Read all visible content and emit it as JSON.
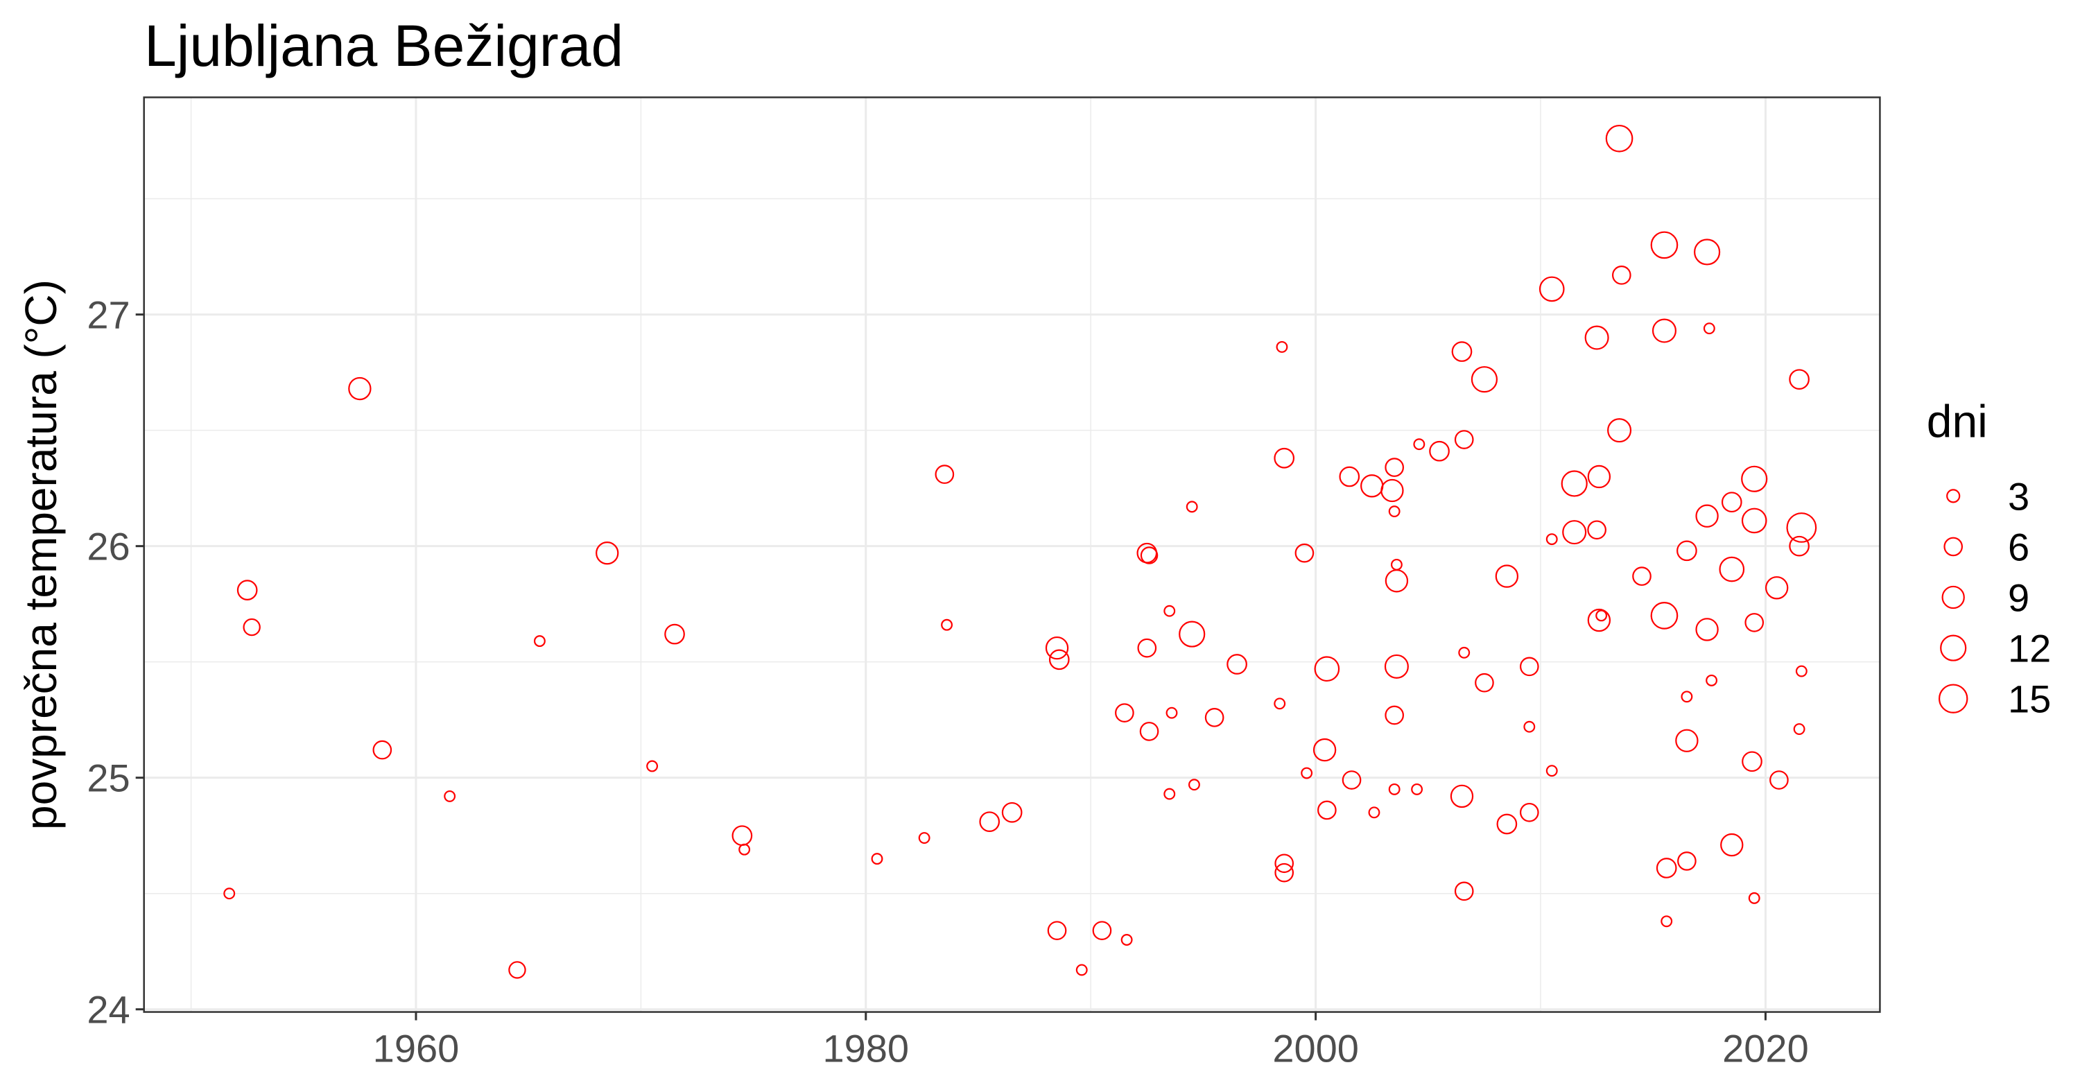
{
  "chart_data": {
    "type": "scatter",
    "title": "Ljubljana Bežigrad",
    "xlabel": "",
    "ylabel": "povprečna temperatura (°C)",
    "xlim": [
      1948,
      2025
    ],
    "ylim": [
      23.99,
      27.93
    ],
    "x_ticks": [
      1960,
      1980,
      2000,
      2020
    ],
    "y_ticks": [
      24,
      25,
      26,
      27
    ],
    "grid": true,
    "point_color": "#ff0000",
    "point_style": "hollow circle",
    "size_legend": {
      "title": "dni",
      "values": [
        3,
        6,
        9,
        12,
        15
      ],
      "position": "right"
    },
    "points": [
      {
        "x": 1951.7,
        "y": 24.5,
        "size": 2
      },
      {
        "x": 1952.5,
        "y": 25.81,
        "size": 7
      },
      {
        "x": 1952.7,
        "y": 25.65,
        "size": 5
      },
      {
        "x": 1957.5,
        "y": 26.68,
        "size": 9
      },
      {
        "x": 1958.5,
        "y": 25.12,
        "size": 6
      },
      {
        "x": 1961.5,
        "y": 24.92,
        "size": 2
      },
      {
        "x": 1964.5,
        "y": 24.17,
        "size": 5
      },
      {
        "x": 1965.5,
        "y": 25.59,
        "size": 2
      },
      {
        "x": 1968.5,
        "y": 25.97,
        "size": 9
      },
      {
        "x": 1970.5,
        "y": 25.05,
        "size": 2
      },
      {
        "x": 1971.5,
        "y": 25.62,
        "size": 7
      },
      {
        "x": 1974.5,
        "y": 24.75,
        "size": 7
      },
      {
        "x": 1974.6,
        "y": 24.69,
        "size": 2
      },
      {
        "x": 1980.5,
        "y": 24.65,
        "size": 2
      },
      {
        "x": 1982.6,
        "y": 24.74,
        "size": 2
      },
      {
        "x": 1983.5,
        "y": 26.31,
        "size": 6
      },
      {
        "x": 1983.6,
        "y": 25.66,
        "size": 2
      },
      {
        "x": 1985.5,
        "y": 24.81,
        "size": 7
      },
      {
        "x": 1986.5,
        "y": 24.85,
        "size": 7
      },
      {
        "x": 1988.5,
        "y": 25.56,
        "size": 9
      },
      {
        "x": 1988.6,
        "y": 25.51,
        "size": 7
      },
      {
        "x": 1988.5,
        "y": 24.34,
        "size": 6
      },
      {
        "x": 1989.6,
        "y": 24.17,
        "size": 2
      },
      {
        "x": 1990.5,
        "y": 24.34,
        "size": 6
      },
      {
        "x": 1991.5,
        "y": 25.28,
        "size": 6
      },
      {
        "x": 1991.6,
        "y": 24.3,
        "size": 2
      },
      {
        "x": 1992.5,
        "y": 25.97,
        "size": 7
      },
      {
        "x": 1992.6,
        "y": 25.96,
        "size": 5
      },
      {
        "x": 1992.5,
        "y": 25.56,
        "size": 6
      },
      {
        "x": 1992.6,
        "y": 25.2,
        "size": 6
      },
      {
        "x": 1993.5,
        "y": 25.72,
        "size": 2
      },
      {
        "x": 1993.6,
        "y": 25.28,
        "size": 2
      },
      {
        "x": 1993.5,
        "y": 24.93,
        "size": 2
      },
      {
        "x": 1994.5,
        "y": 26.17,
        "size": 2
      },
      {
        "x": 1994.5,
        "y": 25.62,
        "size": 12
      },
      {
        "x": 1994.6,
        "y": 24.97,
        "size": 2
      },
      {
        "x": 1995.5,
        "y": 25.26,
        "size": 6
      },
      {
        "x": 1996.5,
        "y": 25.49,
        "size": 7
      },
      {
        "x": 1998.5,
        "y": 26.86,
        "size": 2
      },
      {
        "x": 1998.6,
        "y": 26.38,
        "size": 7
      },
      {
        "x": 1998.4,
        "y": 25.32,
        "size": 2
      },
      {
        "x": 1998.6,
        "y": 24.63,
        "size": 6
      },
      {
        "x": 1998.6,
        "y": 24.59,
        "size": 6
      },
      {
        "x": 1999.5,
        "y": 25.97,
        "size": 6
      },
      {
        "x": 1999.6,
        "y": 25.02,
        "size": 2
      },
      {
        "x": 2000.5,
        "y": 25.47,
        "size": 11
      },
      {
        "x": 2000.4,
        "y": 25.12,
        "size": 9
      },
      {
        "x": 2000.5,
        "y": 24.86,
        "size": 6
      },
      {
        "x": 2001.5,
        "y": 26.3,
        "size": 7
      },
      {
        "x": 2001.6,
        "y": 24.99,
        "size": 6
      },
      {
        "x": 2002.5,
        "y": 26.26,
        "size": 9
      },
      {
        "x": 2002.6,
        "y": 24.85,
        "size": 2
      },
      {
        "x": 2003.5,
        "y": 26.34,
        "size": 6
      },
      {
        "x": 2003.4,
        "y": 26.24,
        "size": 9
      },
      {
        "x": 2003.5,
        "y": 26.15,
        "size": 2
      },
      {
        "x": 2003.6,
        "y": 25.92,
        "size": 2
      },
      {
        "x": 2003.6,
        "y": 25.85,
        "size": 9
      },
      {
        "x": 2003.6,
        "y": 25.48,
        "size": 10
      },
      {
        "x": 2003.5,
        "y": 25.27,
        "size": 6
      },
      {
        "x": 2003.5,
        "y": 24.95,
        "size": 2
      },
      {
        "x": 2004.5,
        "y": 24.95,
        "size": 2
      },
      {
        "x": 2004.6,
        "y": 26.44,
        "size": 2
      },
      {
        "x": 2005.5,
        "y": 26.41,
        "size": 7
      },
      {
        "x": 2006.5,
        "y": 26.84,
        "size": 7
      },
      {
        "x": 2006.6,
        "y": 26.46,
        "size": 6
      },
      {
        "x": 2006.6,
        "y": 25.54,
        "size": 2
      },
      {
        "x": 2006.5,
        "y": 24.92,
        "size": 9
      },
      {
        "x": 2006.6,
        "y": 24.51,
        "size": 6
      },
      {
        "x": 2007.5,
        "y": 26.72,
        "size": 12
      },
      {
        "x": 2007.5,
        "y": 25.41,
        "size": 6
      },
      {
        "x": 2008.5,
        "y": 25.87,
        "size": 9
      },
      {
        "x": 2008.5,
        "y": 24.8,
        "size": 7
      },
      {
        "x": 2009.5,
        "y": 25.48,
        "size": 6
      },
      {
        "x": 2009.5,
        "y": 25.22,
        "size": 2
      },
      {
        "x": 2009.5,
        "y": 24.85,
        "size": 6
      },
      {
        "x": 2010.5,
        "y": 27.11,
        "size": 11
      },
      {
        "x": 2010.5,
        "y": 26.03,
        "size": 2
      },
      {
        "x": 2010.5,
        "y": 25.03,
        "size": 2
      },
      {
        "x": 2011.5,
        "y": 26.27,
        "size": 12
      },
      {
        "x": 2011.5,
        "y": 26.06,
        "size": 10
      },
      {
        "x": 2012.5,
        "y": 26.9,
        "size": 10
      },
      {
        "x": 2012.6,
        "y": 26.3,
        "size": 9
      },
      {
        "x": 2012.5,
        "y": 26.07,
        "size": 6
      },
      {
        "x": 2012.6,
        "y": 25.68,
        "size": 9
      },
      {
        "x": 2012.7,
        "y": 25.7,
        "size": 2
      },
      {
        "x": 2013.5,
        "y": 27.76,
        "size": 13
      },
      {
        "x": 2013.6,
        "y": 27.17,
        "size": 6
      },
      {
        "x": 2013.5,
        "y": 26.5,
        "size": 10
      },
      {
        "x": 2014.5,
        "y": 25.87,
        "size": 6
      },
      {
        "x": 2015.5,
        "y": 27.3,
        "size": 13
      },
      {
        "x": 2015.5,
        "y": 26.93,
        "size": 10
      },
      {
        "x": 2015.5,
        "y": 25.7,
        "size": 13
      },
      {
        "x": 2015.6,
        "y": 24.61,
        "size": 7
      },
      {
        "x": 2015.6,
        "y": 24.38,
        "size": 2
      },
      {
        "x": 2016.5,
        "y": 25.98,
        "size": 7
      },
      {
        "x": 2016.5,
        "y": 25.35,
        "size": 2
      },
      {
        "x": 2016.5,
        "y": 25.16,
        "size": 9
      },
      {
        "x": 2016.5,
        "y": 24.64,
        "size": 6
      },
      {
        "x": 2017.4,
        "y": 27.27,
        "size": 12
      },
      {
        "x": 2017.5,
        "y": 26.94,
        "size": 2
      },
      {
        "x": 2017.4,
        "y": 26.13,
        "size": 9
      },
      {
        "x": 2017.4,
        "y": 25.64,
        "size": 9
      },
      {
        "x": 2017.6,
        "y": 25.42,
        "size": 2
      },
      {
        "x": 2018.5,
        "y": 26.19,
        "size": 7
      },
      {
        "x": 2018.5,
        "y": 25.9,
        "size": 11
      },
      {
        "x": 2018.5,
        "y": 24.71,
        "size": 9
      },
      {
        "x": 2019.5,
        "y": 26.29,
        "size": 12
      },
      {
        "x": 2019.5,
        "y": 26.11,
        "size": 11
      },
      {
        "x": 2019.5,
        "y": 25.67,
        "size": 6
      },
      {
        "x": 2019.4,
        "y": 25.07,
        "size": 7
      },
      {
        "x": 2019.5,
        "y": 24.48,
        "size": 2
      },
      {
        "x": 2020.5,
        "y": 25.82,
        "size": 9
      },
      {
        "x": 2020.6,
        "y": 24.99,
        "size": 6
      },
      {
        "x": 2021.5,
        "y": 26.72,
        "size": 7
      },
      {
        "x": 2021.6,
        "y": 26.08,
        "size": 16
      },
      {
        "x": 2021.5,
        "y": 26.0,
        "size": 7
      },
      {
        "x": 2021.6,
        "y": 25.46,
        "size": 2
      },
      {
        "x": 2021.5,
        "y": 25.21,
        "size": 2
      }
    ]
  }
}
